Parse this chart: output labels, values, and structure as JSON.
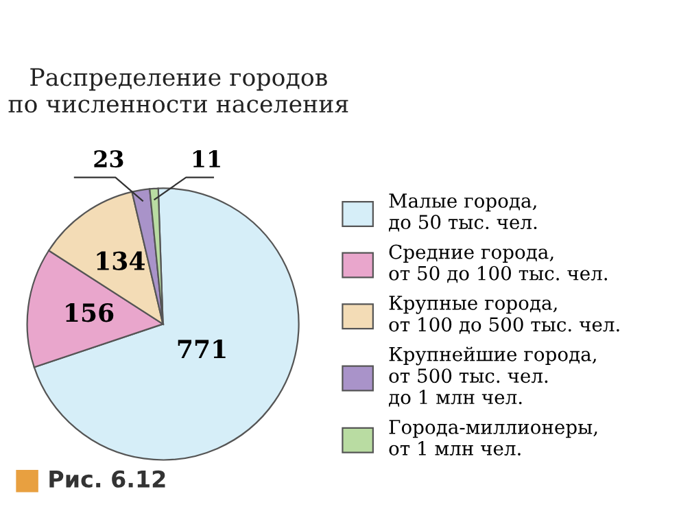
{
  "chart_data": {
    "type": "pie",
    "title": "Распределение городов\nпо численности населения",
    "categories": [
      "Малые города,\nдо 50 тыс. чел.",
      "Средние города,\nот 50 до 100 тыс. чел.",
      "Крупные города,\nот 100 до 500 тыс. чел.",
      "Крупнейшие города,\nот 500 тыс. чел.\nдо 1 млн чел.",
      "Города-миллионеры,\nот 1 млн чел."
    ],
    "values": [
      771,
      156,
      134,
      23,
      11
    ],
    "colors": [
      "#d6eef8",
      "#e9a6cc",
      "#f3dcb6",
      "#a993c9",
      "#b9dca2"
    ],
    "data_labels": true,
    "legend": "right",
    "annotations": [
      "Рис. 6.12"
    ]
  }
}
